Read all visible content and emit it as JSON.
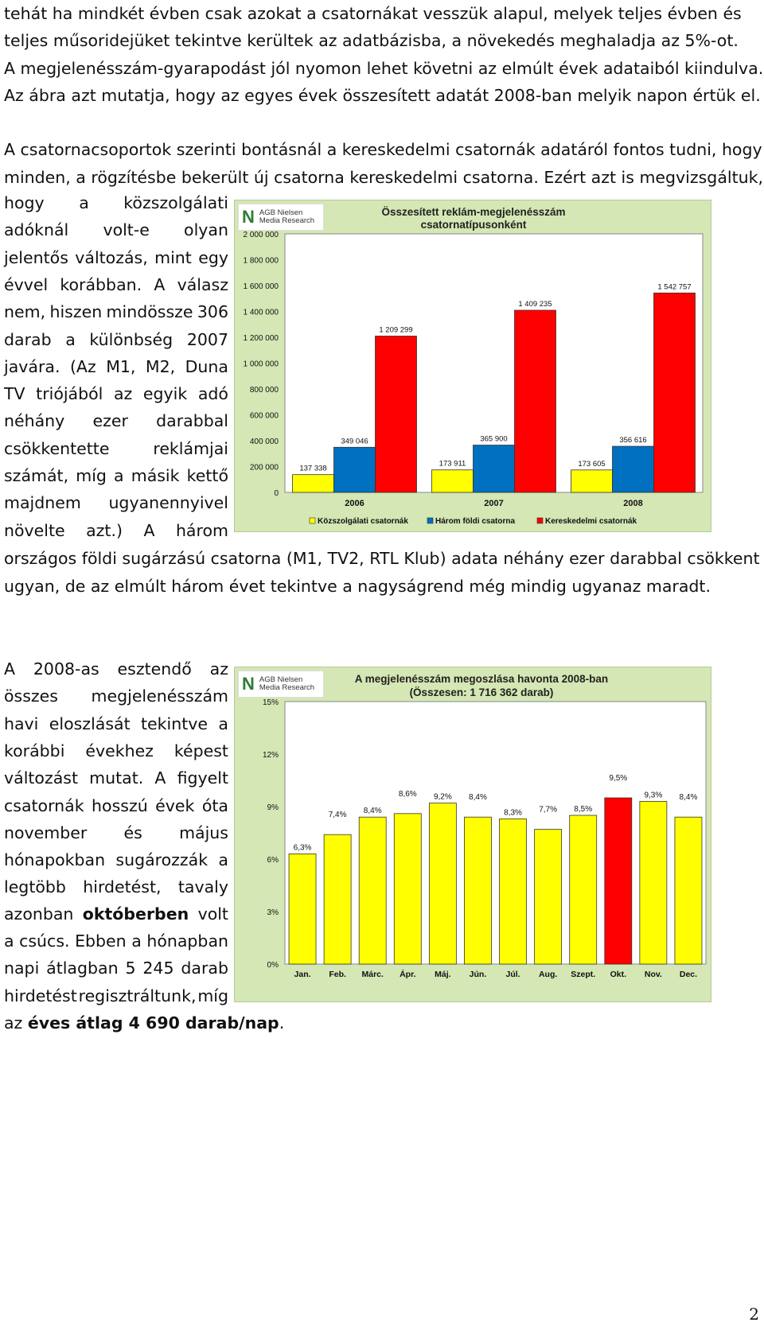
{
  "intro_lines": [
    "tehát ha mindkét évben csak azokat a csatornákat vesszük alapul, melyek teljes évben és",
    "teljes műsoridejüket tekintve kerültek az adatbázisba, a növekedés meghaladja az 5%-ot.",
    "A megjelenésszám-gyarapodást jól nyomon lehet követni az elmúlt évek adataiból kiindulva.",
    "Az ábra azt mutatja, hogy az egyes évek összesített adatát 2008-ban melyik napon értük el."
  ],
  "para2_lines": [
    "A csatornacsoportok szerinti bontásnál a kereskedelmi csatornák adatáról fontos tudni, hogy",
    "minden, a rögzítésbe bekerült új csatorna kereskedelmi csatorna. Ezért azt is megvizsgáltuk,"
  ],
  "para2_narrow": [
    "hogy a közszolgálati",
    "adóknál volt-e olyan",
    "jelentős változás, mint egy",
    "évvel korábban. A válasz",
    "nem, hiszen mindössze 306",
    "darab a különbség 2007",
    "javára. (Az M1, M2, Duna",
    "TV triójából az egyik adó",
    "néhány ezer darabbal",
    "csökkentette reklámjai",
    "számát, míg a másik kettő",
    "majdnem ugyanennyivel",
    "növelte azt.) A három"
  ],
  "para2_tail": [
    "országos földi sugárzású csatorna (M1, TV2, RTL Klub) adata néhány ezer darabbal csökkent",
    "ugyan, de az elmúlt három évet tekintve a nagyságrend még mindig ugyanaz maradt."
  ],
  "para3_narrow": [
    "A 2008-as esztendő az",
    "összes megjelenésszám",
    "havi eloszlását tekintve a",
    "korábbi évekhez képest",
    "változást mutat. A figyelt",
    "csatornák hosszú évek óta",
    "november és május",
    "hónapokban sugározzák a",
    "legtöbb hirdetést, tavaly"
  ],
  "para3_bold_line": {
    "pre": "azonban",
    "bold": "októberben",
    "post": "volt"
  },
  "para3_narrow2": [
    "a csúcs. Ebben a hónapban",
    "napi átlagban 5 245 darab",
    "hirdetést regisztráltunk, míg"
  ],
  "para3_last": {
    "pre": "az ",
    "bold": "éves átlag 4 690 darab/nap",
    "post": "."
  },
  "logo": {
    "line1": "AGB Nielsen",
    "line2": "Media Research"
  },
  "page_number": "2",
  "colors": {
    "yellow": "#ffff00",
    "blue": "#0070c0",
    "red": "#ff0000",
    "chart_bg": "#d4e7b4"
  },
  "chart_data": [
    {
      "type": "bar",
      "title": "Összesített reklám-megjelenésszám",
      "subtitle": "csatornatípusonként",
      "categories": [
        "2006",
        "2007",
        "2008"
      ],
      "series": [
        {
          "name": "Közszolgálati csatornák",
          "values": [
            137338,
            173911,
            173605
          ],
          "labels": [
            "137 338",
            "173 911",
            "173 605"
          ],
          "color": "#ffff00"
        },
        {
          "name": "Három földi csatorna",
          "values": [
            349046,
            365900,
            356616
          ],
          "labels": [
            "349 046",
            "365 900",
            "356 616"
          ],
          "color": "#0070c0"
        },
        {
          "name": "Kereskedelmi csatornák",
          "values": [
            1209299,
            1409235,
            1542757
          ],
          "labels": [
            "1 209 299",
            "1 409 235",
            "1 542 757"
          ],
          "color": "#ff0000"
        }
      ],
      "ylim": [
        0,
        2000000
      ],
      "yticks": [
        "0",
        "200 000",
        "400 000",
        "600 000",
        "800 000",
        "1 000 000",
        "1 200 000",
        "1 400 000",
        "1 600 000",
        "1 800 000",
        "2 000 000"
      ],
      "legend": "bottom",
      "grid": false
    },
    {
      "type": "bar",
      "title": "A megjelenésszám megoszlása havonta 2008-ban",
      "subtitle": "(Összesen: 1 716 362 darab)",
      "categories": [
        "Jan.",
        "Feb.",
        "Márc.",
        "Ápr.",
        "Máj.",
        "Jún.",
        "Júl.",
        "Aug.",
        "Szept.",
        "Okt.",
        "Nov.",
        "Dec."
      ],
      "values": [
        6.3,
        7.4,
        8.4,
        8.6,
        9.2,
        8.4,
        8.3,
        7.7,
        8.5,
        9.5,
        9.3,
        8.4
      ],
      "labels": [
        "6,3%",
        "7,4%",
        "8,4%",
        "8,6%",
        "9,2%",
        "8,4%",
        "8,3%",
        "7,7%",
        "8,5%",
        "9,5%",
        "9,3%",
        "8,4%"
      ],
      "highlight_index": 9,
      "bar_color": "#ffff00",
      "highlight_color": "#ff0000",
      "ylim": [
        0,
        15
      ],
      "yticks": [
        "0%",
        "3%",
        "6%",
        "9%",
        "12%",
        "15%"
      ],
      "grid": false
    }
  ]
}
